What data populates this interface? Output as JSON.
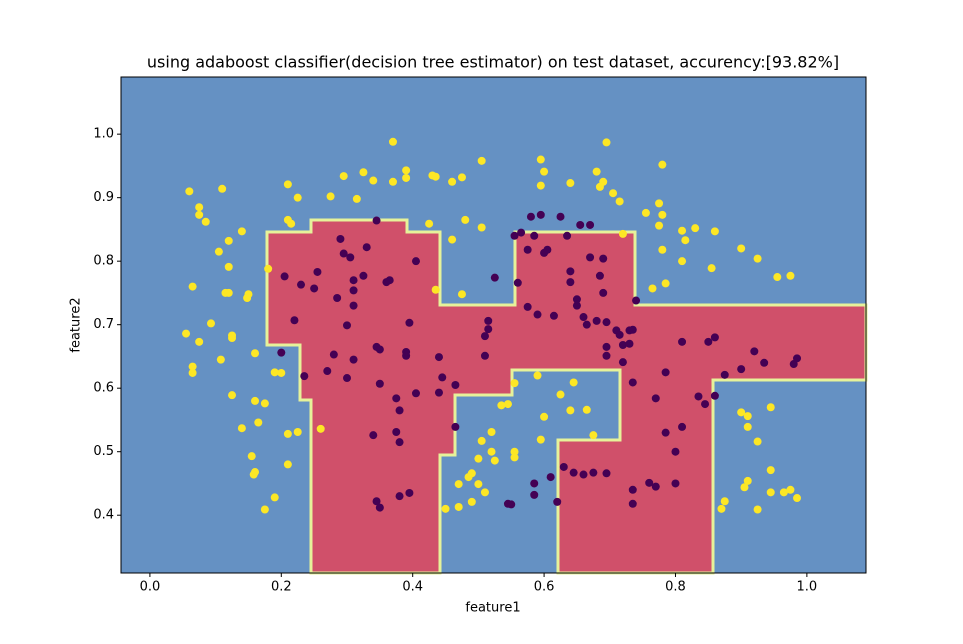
{
  "chart_data": {
    "type": "scatter",
    "title": "using adaboost classifier(decision tree estimator) on test dataset, accurency:[93.82%]",
    "x_label": "feature1",
    "y_label": "feature2",
    "xlim": [
      -0.044,
      1.09
    ],
    "ylim": [
      0.309,
      1.09
    ],
    "xticks": [
      {
        "value": 0,
        "label": "0.0"
      },
      0.2,
      0.4,
      0.6,
      0.8,
      {
        "value": 1,
        "label": "1.0"
      }
    ],
    "yticks": [
      0.4,
      0.5,
      0.6,
      0.7,
      0.8,
      0.9,
      {
        "value": 1,
        "label": "1.0"
      }
    ],
    "series": [
      {
        "color": "#fde725",
        "x": [
          0.06,
          0.075,
          0.075,
          0.085,
          0.11,
          0.14,
          0.12,
          0.105,
          0.12,
          0.115,
          0.12,
          0.15,
          0.148,
          0.065,
          0.055,
          0.075,
          0.093,
          0.125,
          0.125,
          0.108,
          0.065,
          0.065,
          0.16,
          0.125,
          0.16,
          0.175,
          0.14,
          0.165,
          0.155,
          0.16,
          0.158,
          0.21,
          0.225,
          0.21,
          0.19,
          0.175,
          0.19,
          0.2,
          0.18,
          0.21,
          0.215,
          0.21,
          0.225,
          0.275,
          0.295,
          0.315,
          0.325,
          0.34,
          0.37,
          0.37,
          0.39,
          0.39,
          0.43,
          0.435,
          0.425,
          0.46,
          0.475,
          0.505,
          0.48,
          0.505,
          0.46,
          0.475,
          0.435,
          0.26,
          0.555,
          0.545,
          0.535,
          0.59,
          0.6,
          0.625,
          0.645,
          0.64,
          0.665,
          0.675,
          0.595,
          0.52,
          0.505,
          0.5,
          0.52,
          0.525,
          0.555,
          0.555,
          0.49,
          0.485,
          0.47,
          0.47,
          0.45,
          0.49,
          0.5,
          0.51,
          0.595,
          0.6,
          0.595,
          0.64,
          0.68,
          0.685,
          0.69,
          0.695,
          0.705,
          0.715,
          0.72,
          0.755,
          0.775,
          0.78,
          0.775,
          0.78,
          0.78,
          0.765,
          0.785,
          0.81,
          0.815,
          0.83,
          0.81,
          0.86,
          0.855,
          0.9,
          0.925,
          0.955,
          0.975,
          0.9,
          0.91,
          0.91,
          0.925,
          0.945,
          0.945,
          0.905,
          0.91,
          0.945,
          0.965,
          0.975,
          0.985,
          0.875,
          0.87,
          0.925
        ],
        "values": [
          0.91,
          0.885,
          0.873,
          0.862,
          0.914,
          0.847,
          0.832,
          0.815,
          0.791,
          0.75,
          0.75,
          0.748,
          0.742,
          0.76,
          0.686,
          0.673,
          0.702,
          0.683,
          0.679,
          0.645,
          0.634,
          0.624,
          0.655,
          0.589,
          0.58,
          0.576,
          0.537,
          0.546,
          0.493,
          0.468,
          0.464,
          0.528,
          0.531,
          0.48,
          0.428,
          0.409,
          0.625,
          0.624,
          0.788,
          0.865,
          0.859,
          0.921,
          0.9,
          0.902,
          0.934,
          0.898,
          0.94,
          0.927,
          0.925,
          0.988,
          0.931,
          0.943,
          0.935,
          0.933,
          0.859,
          0.925,
          0.932,
          0.958,
          0.865,
          0.853,
          0.834,
          0.748,
          0.755,
          0.536,
          0.608,
          0.575,
          0.573,
          0.62,
          0.555,
          0.59,
          0.609,
          0.565,
          0.566,
          0.526,
          0.519,
          0.531,
          0.517,
          0.489,
          0.5,
          0.486,
          0.5,
          0.491,
          0.466,
          0.46,
          0.449,
          0.413,
          0.41,
          0.421,
          0.449,
          0.436,
          0.96,
          0.941,
          0.919,
          0.923,
          0.941,
          0.917,
          0.925,
          0.987,
          0.907,
          0.894,
          0.843,
          0.876,
          0.891,
          0.873,
          0.856,
          0.952,
          0.818,
          0.757,
          0.765,
          0.848,
          0.833,
          0.852,
          0.8,
          0.847,
          0.789,
          0.82,
          0.804,
          0.775,
          0.777,
          0.562,
          0.556,
          0.539,
          0.516,
          0.57,
          0.471,
          0.444,
          0.454,
          0.436,
          0.436,
          0.44,
          0.427,
          0.422,
          0.41,
          0.409
        ]
      },
      {
        "color": "#440154",
        "x": [
          0.2,
          0.205,
          0.22,
          0.23,
          0.235,
          0.25,
          0.255,
          0.27,
          0.28,
          0.285,
          0.29,
          0.295,
          0.3,
          0.3,
          0.305,
          0.31,
          0.31,
          0.31,
          0.31,
          0.325,
          0.33,
          0.345,
          0.34,
          0.345,
          0.35,
          0.35,
          0.36,
          0.365,
          0.375,
          0.375,
          0.38,
          0.38,
          0.39,
          0.39,
          0.395,
          0.405,
          0.405,
          0.38,
          0.395,
          0.345,
          0.35,
          0.44,
          0.445,
          0.44,
          0.465,
          0.465,
          0.51,
          0.51,
          0.515,
          0.515,
          0.525,
          0.555,
          0.56,
          0.565,
          0.575,
          0.575,
          0.58,
          0.585,
          0.59,
          0.595,
          0.6,
          0.605,
          0.615,
          0.625,
          0.635,
          0.64,
          0.64,
          0.65,
          0.65,
          0.655,
          0.66,
          0.665,
          0.67,
          0.67,
          0.68,
          0.685,
          0.69,
          0.69,
          0.695,
          0.695,
          0.695,
          0.71,
          0.715,
          0.72,
          0.72,
          0.73,
          0.735,
          0.74,
          0.735,
          0.73,
          0.785,
          0.77,
          0.785,
          0.8,
          0.81,
          0.81,
          0.835,
          0.845,
          0.85,
          0.86,
          0.86,
          0.875,
          0.9,
          0.92,
          0.935,
          0.98,
          0.985,
          0.545,
          0.55,
          0.585,
          0.585,
          0.61,
          0.62,
          0.63,
          0.645,
          0.66,
          0.675,
          0.695,
          0.735,
          0.735,
          0.76,
          0.77,
          0.8
        ],
        "values": [
          0.656,
          0.776,
          0.707,
          0.763,
          0.619,
          0.757,
          0.783,
          0.627,
          0.653,
          0.742,
          0.835,
          0.812,
          0.699,
          0.616,
          0.806,
          0.77,
          0.73,
          0.754,
          0.645,
          0.777,
          0.822,
          0.864,
          0.526,
          0.665,
          0.607,
          0.661,
          0.767,
          0.77,
          0.584,
          0.531,
          0.565,
          0.515,
          0.651,
          0.657,
          0.703,
          0.8,
          0.592,
          0.43,
          0.435,
          0.422,
          0.412,
          0.649,
          0.617,
          0.593,
          0.605,
          0.539,
          0.682,
          0.651,
          0.706,
          0.693,
          0.774,
          0.84,
          0.766,
          0.845,
          0.818,
          0.728,
          0.87,
          0.84,
          0.716,
          0.873,
          0.813,
          0.818,
          0.714,
          0.87,
          0.84,
          0.784,
          0.767,
          0.73,
          0.74,
          0.857,
          0.712,
          0.7,
          0.857,
          0.806,
          0.706,
          0.777,
          0.804,
          0.75,
          0.665,
          0.651,
          0.704,
          0.691,
          0.684,
          0.641,
          0.668,
          0.691,
          0.692,
          0.738,
          0.609,
          0.67,
          0.625,
          0.584,
          0.53,
          0.5,
          0.539,
          0.673,
          0.587,
          0.575,
          0.673,
          0.68,
          0.588,
          0.621,
          0.63,
          0.658,
          0.64,
          0.638,
          0.647,
          0.418,
          0.417,
          0.432,
          0.45,
          0.46,
          0.421,
          0.476,
          0.467,
          0.464,
          0.467,
          0.466,
          0.44,
          0.418,
          0.451,
          0.445,
          0.45
        ]
      }
    ]
  }
}
